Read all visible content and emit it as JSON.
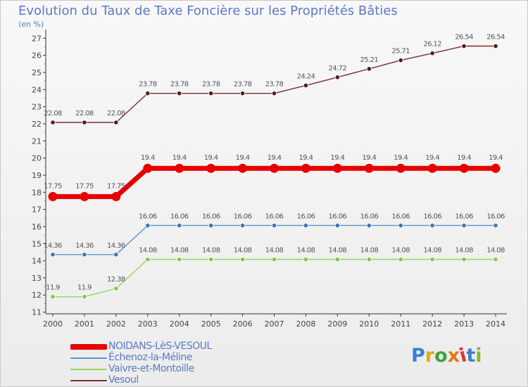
{
  "title": "Evolution du Taux de Taxe Foncière sur les Propriétés Bâties",
  "unit_label": "(en %)",
  "logo": {
    "text": "Proxiti",
    "colors": [
      "#3a7fd5",
      "#e8a617",
      "#3aa63a",
      "#e8731a",
      "#d63a3a",
      "#3a7fd5",
      "#8ab820"
    ]
  },
  "chart_data": {
    "type": "line",
    "title": "Evolution du Taux de Taxe Foncière sur les Propriétés Bâties",
    "ylabel": "(en %)",
    "xlabel": "",
    "ylim": [
      10.9,
      27.3
    ],
    "yticks": [
      11,
      12,
      13,
      14,
      15,
      16,
      17,
      18,
      19,
      20,
      21,
      22,
      23,
      24,
      25,
      26,
      27
    ],
    "grid": false,
    "legend_position": "bottom-left",
    "categories": [
      "2000",
      "2001",
      "2002",
      "2003",
      "2004",
      "2005",
      "2006",
      "2007",
      "2008",
      "2009",
      "2010",
      "2011",
      "2012",
      "2013",
      "2014"
    ],
    "series": [
      {
        "name": "Vesoul",
        "color": "#7a2e2e",
        "marker": "#5a1a1a",
        "emphasis": false,
        "values": [
          22.08,
          22.08,
          22.08,
          23.78,
          23.78,
          23.78,
          23.78,
          23.78,
          24.24,
          24.72,
          25.21,
          25.71,
          26.12,
          26.54,
          26.54
        ],
        "labels": [
          "22.08",
          "22.08",
          "22.08",
          "23.78",
          "23.78",
          "23.78",
          "23.78",
          "23.78",
          "24.24",
          "24.72",
          "25.21",
          "25.71",
          "26.12",
          "26.54",
          "26.54"
        ]
      },
      {
        "name": "NOIDANS-LèS-VESOUL",
        "color": "#e60000",
        "marker": "#e60000",
        "emphasis": true,
        "values": [
          17.75,
          17.75,
          17.75,
          19.4,
          19.4,
          19.4,
          19.4,
          19.4,
          19.4,
          19.4,
          19.4,
          19.4,
          19.4,
          19.4,
          19.4
        ],
        "labels": [
          "17.75",
          "17.75",
          "17.75",
          "19.4",
          "19.4",
          "19.4",
          "19.4",
          "19.4",
          "19.4",
          "19.4",
          "19.4",
          "19.4",
          "19.4",
          "19.4",
          "19.4"
        ]
      },
      {
        "name": "Échenoz-la-Méline",
        "color": "#5b95c8",
        "marker": "#3a78b5",
        "emphasis": false,
        "values": [
          14.36,
          14.36,
          14.36,
          16.06,
          16.06,
          16.06,
          16.06,
          16.06,
          16.06,
          16.06,
          16.06,
          16.06,
          16.06,
          16.06,
          16.06
        ],
        "labels": [
          "14.36",
          "14.36",
          "14.36",
          "16.06",
          "16.06",
          "16.06",
          "16.06",
          "16.06",
          "16.06",
          "16.06",
          "16.06",
          "16.06",
          "16.06",
          "16.06",
          "16.06"
        ]
      },
      {
        "name": "Vaivre-et-Montoille",
        "color": "#90d65a",
        "marker": "#7ec847",
        "emphasis": false,
        "values": [
          11.9,
          11.9,
          12.38,
          14.08,
          14.08,
          14.08,
          14.08,
          14.08,
          14.08,
          14.08,
          14.08,
          14.08,
          14.08,
          14.08,
          14.08
        ],
        "labels": [
          "11.9",
          "11.9",
          "12.38",
          "14.08",
          "14.08",
          "14.08",
          "14.08",
          "14.08",
          "14.08",
          "14.08",
          "14.08",
          "14.08",
          "14.08",
          "14.08",
          "14.08"
        ]
      }
    ],
    "legend_order": [
      "NOIDANS-LèS-VESOUL",
      "Échenoz-la-Méline",
      "Vaivre-et-Montoille",
      "Vesoul"
    ]
  }
}
